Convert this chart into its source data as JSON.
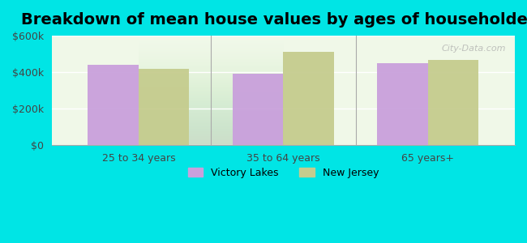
{
  "title": "Breakdown of mean house values by ages of householders",
  "categories": [
    "25 to 34 years",
    "35 to 64 years",
    "65 years+"
  ],
  "victory_lakes": [
    440000,
    390000,
    450000
  ],
  "new_jersey": [
    420000,
    510000,
    465000
  ],
  "victory_lakes_color": "#c9a0dc",
  "new_jersey_color": "#c5cc8e",
  "background_outer": "#00e5e5",
  "background_inner": "#f0f8e8",
  "ylim": [
    0,
    600000
  ],
  "yticks": [
    0,
    200000,
    400000,
    600000
  ],
  "ytick_labels": [
    "$0",
    "$200k",
    "$400k",
    "$600k"
  ],
  "legend_victory": "Victory Lakes",
  "legend_nj": "New Jersey",
  "bar_width": 0.35,
  "title_fontsize": 14,
  "tick_fontsize": 9,
  "legend_fontsize": 9
}
